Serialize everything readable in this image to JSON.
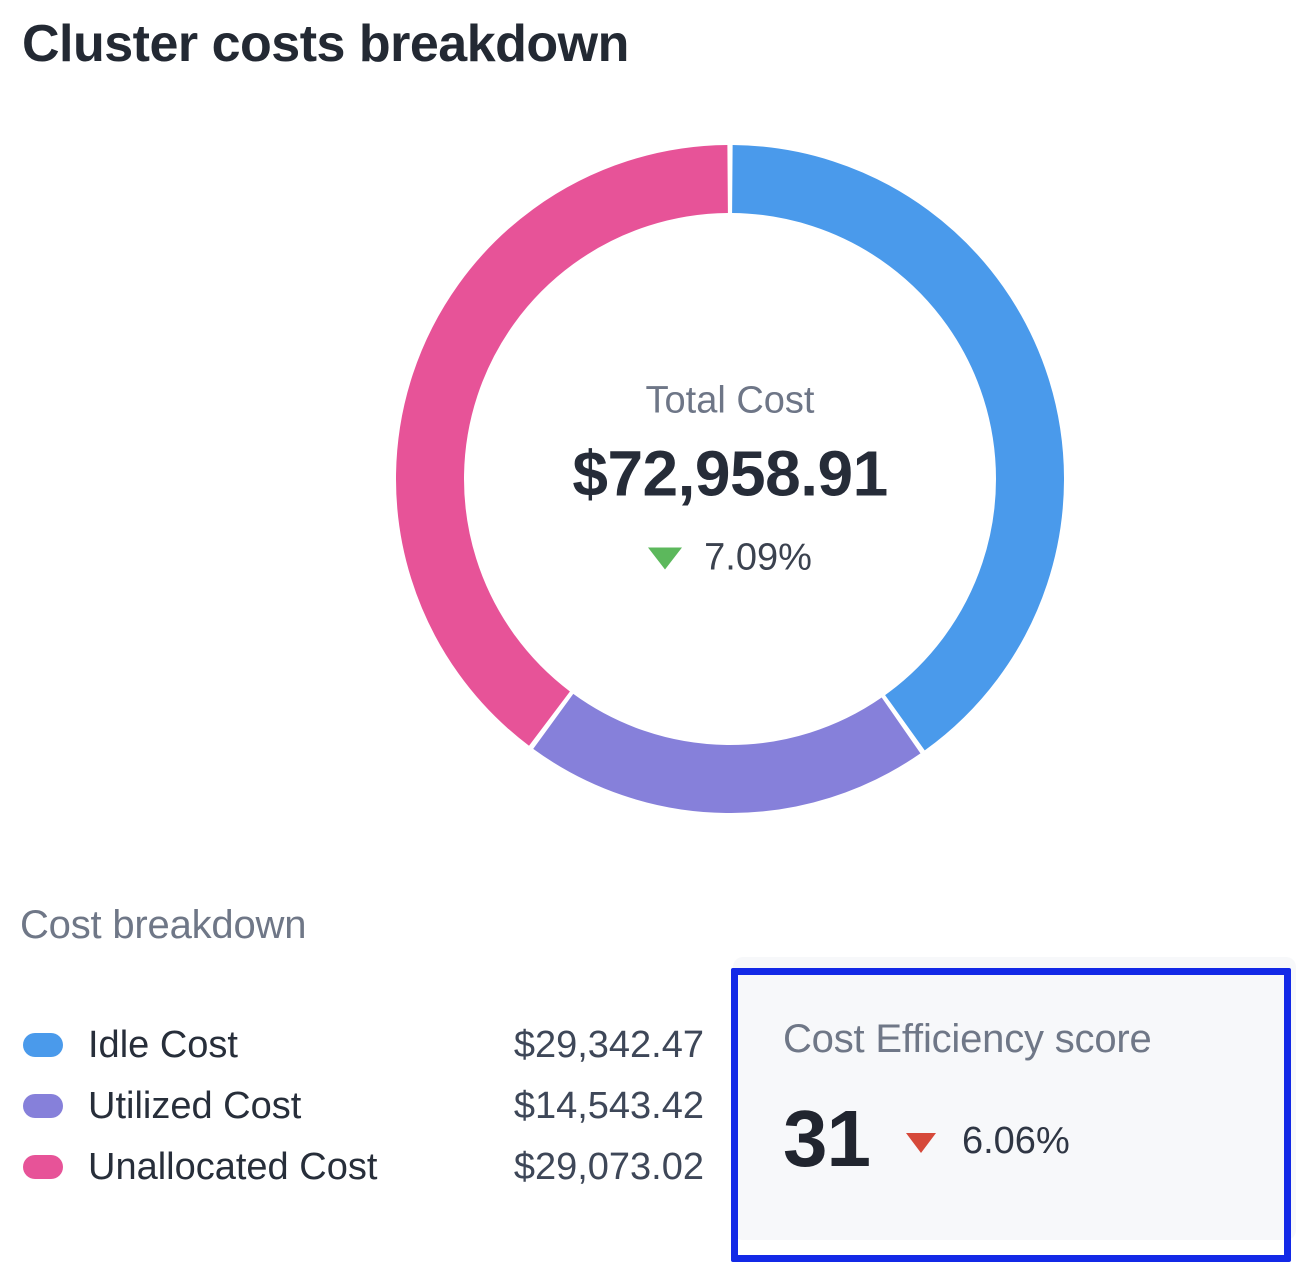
{
  "page": {
    "title": "Cluster costs breakdown",
    "background": "#ffffff"
  },
  "donut": {
    "center_label": "Total Cost",
    "total": "$72,958.91",
    "change": "7.09%",
    "change_direction": "down",
    "change_color": "#5cb85c"
  },
  "breakdown": {
    "heading": "Cost breakdown",
    "items": [
      {
        "label": "Idle Cost",
        "value": "$29,342.47",
        "color": "#4a9aeb"
      },
      {
        "label": "Utilized Cost",
        "value": "$14,543.42",
        "color": "#8680da"
      },
      {
        "label": "Unallocated Cost",
        "value": "$29,073.02",
        "color": "#e75398"
      }
    ]
  },
  "efficiency": {
    "heading": "Cost Efficiency score",
    "score": "31",
    "change": "6.06%",
    "change_direction": "down",
    "change_color": "#d6493a",
    "highlight_border_color": "#1329e7"
  },
  "chart_data": {
    "type": "pie",
    "donut": true,
    "title": "Cluster costs breakdown",
    "categories": [
      "Idle Cost",
      "Utilized Cost",
      "Unallocated Cost"
    ],
    "values": [
      29342.47,
      14543.42,
      29073.02
    ],
    "colors": [
      "#4a9aeb",
      "#8680da",
      "#e75398"
    ],
    "total_label": "Total Cost",
    "total_value": 72958.91,
    "total_display": "$72,958.91",
    "change_percent": 7.09,
    "change_direction": "down",
    "start_angle_deg": 0,
    "direction": "clockwise",
    "legend_position": "bottom-left"
  }
}
